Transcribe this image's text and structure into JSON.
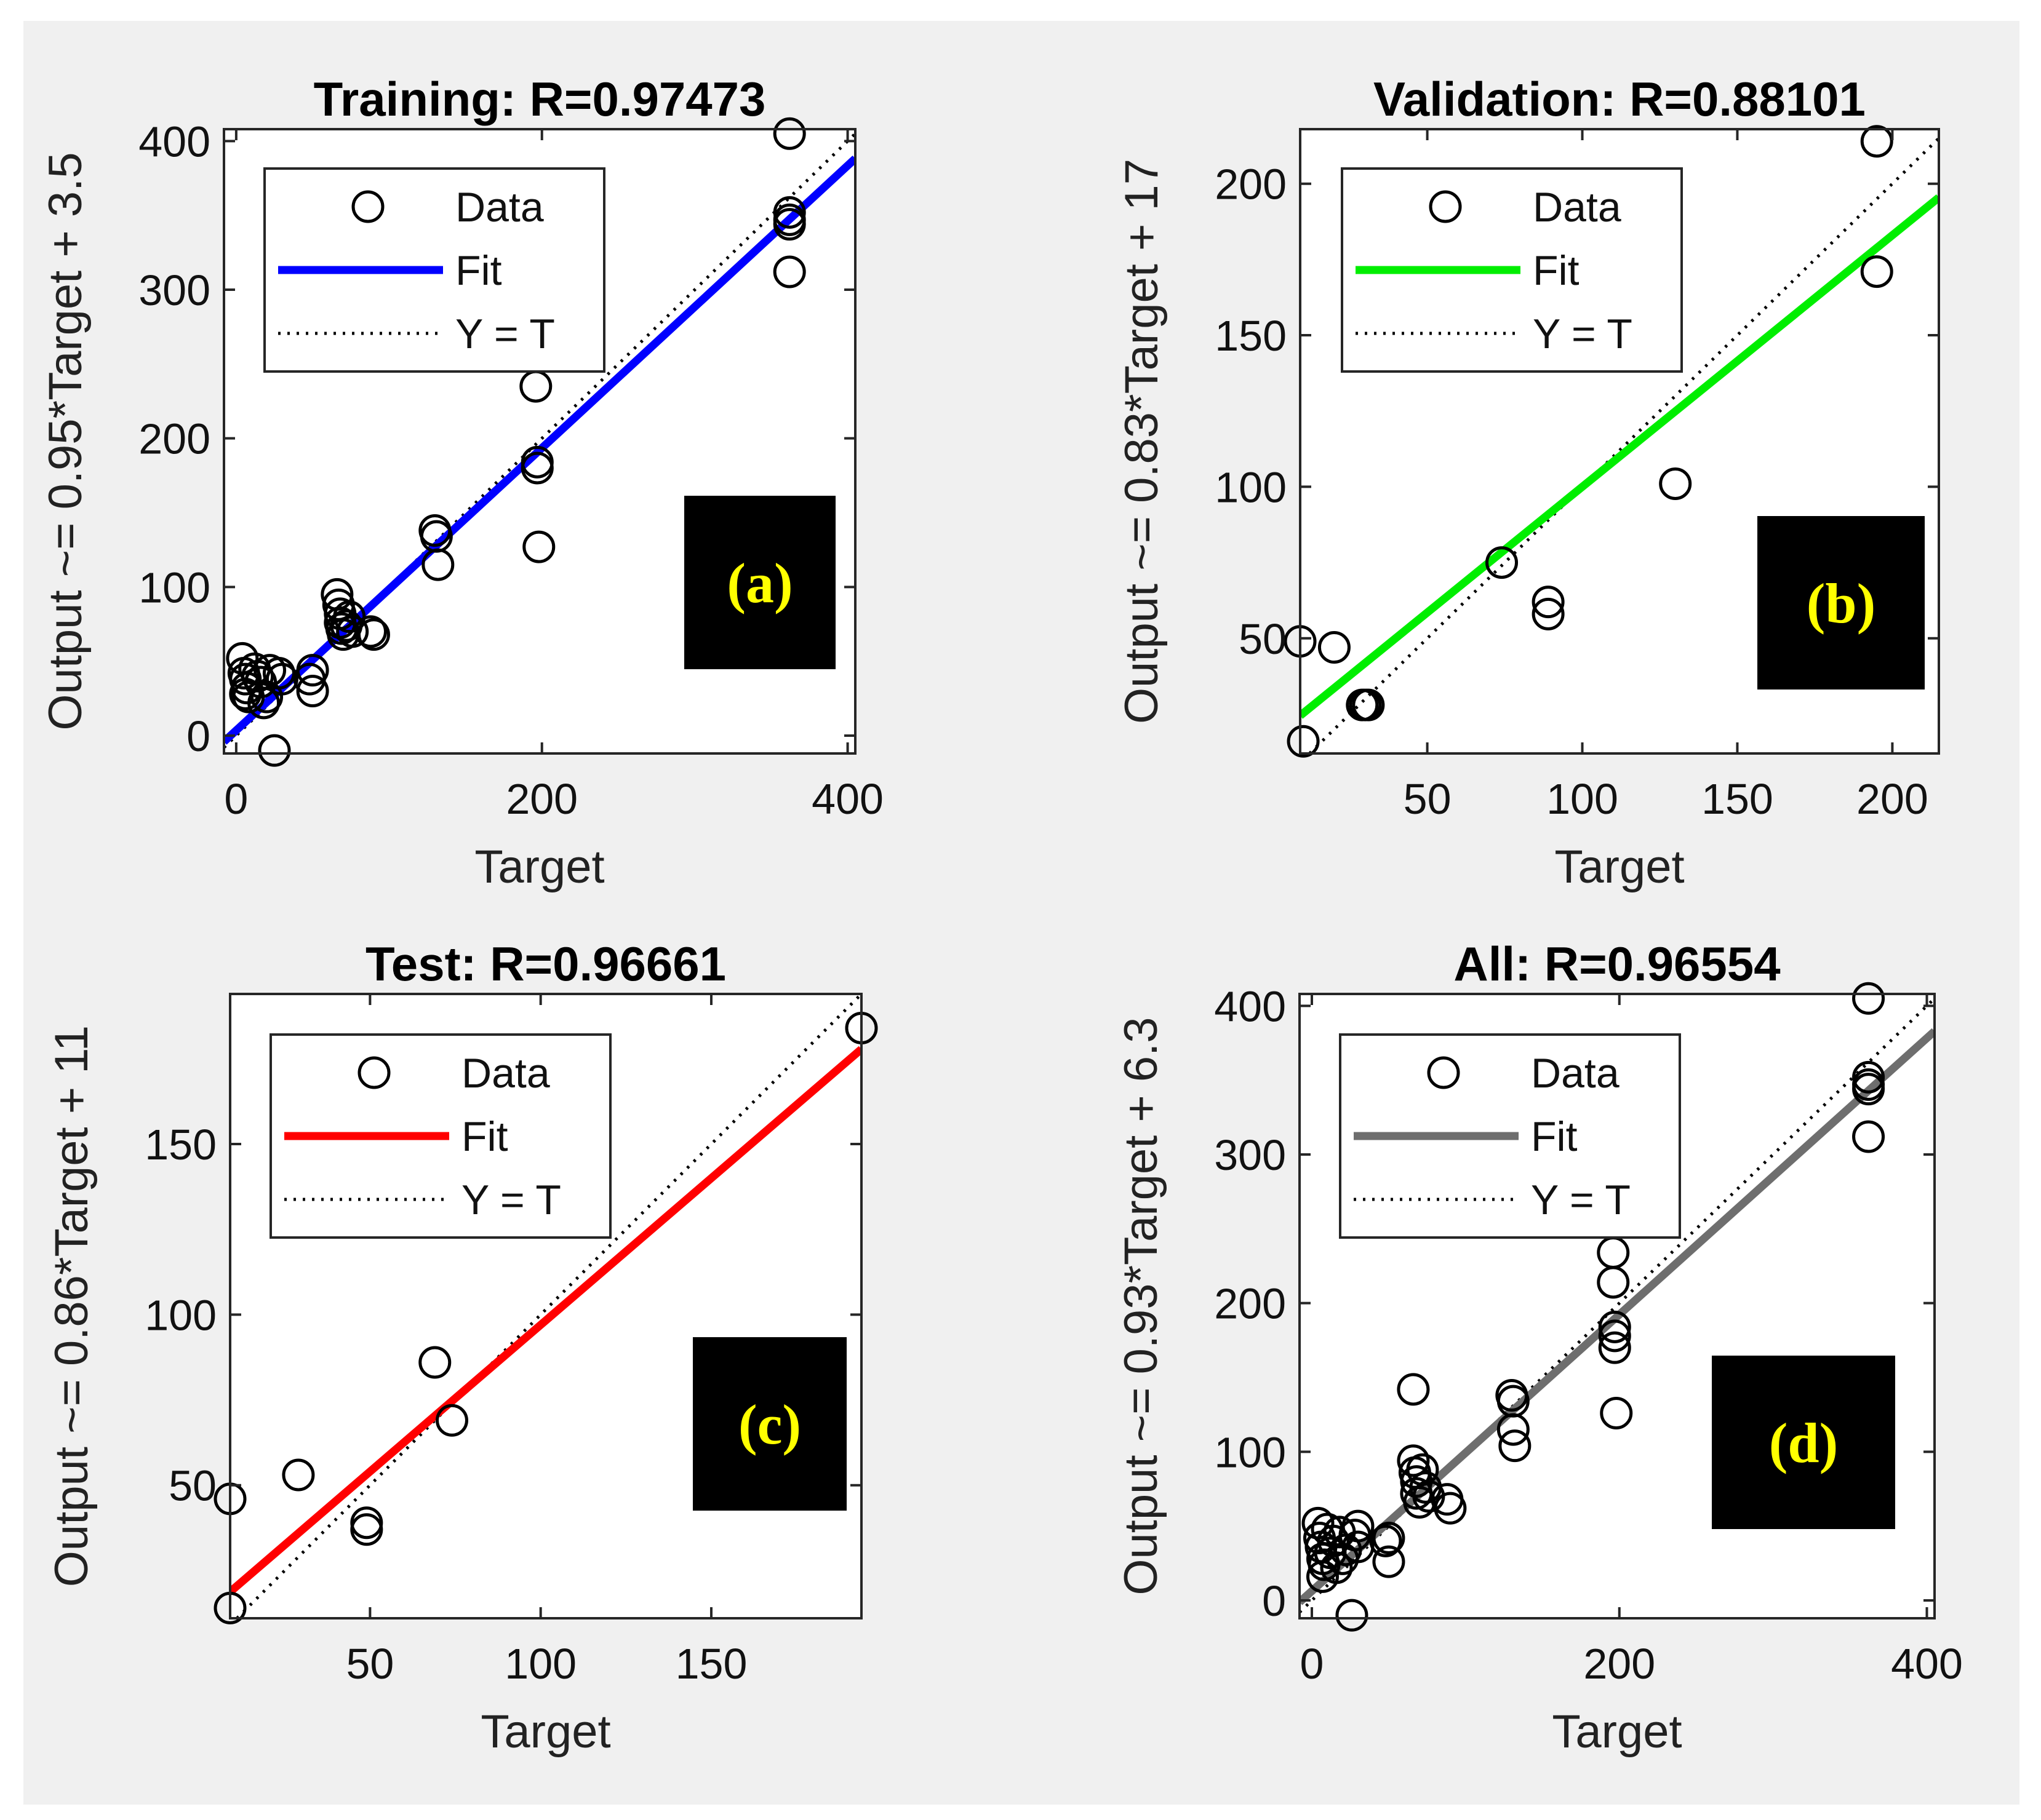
{
  "chart_data": [
    {
      "type": "scatter",
      "panel": "(a)",
      "title": "Training: R=0.97473",
      "xlabel": "Target",
      "ylabel": "Output ~= 0.95*Target + 3.5",
      "xlim": [
        -8,
        405
      ],
      "ylim": [
        -12,
        408
      ],
      "xticks": [
        0,
        200,
        400
      ],
      "yticks": [
        0,
        100,
        200,
        300,
        400
      ],
      "fit": {
        "slope": 0.95,
        "intercept": 3.5,
        "color": "#0000ff"
      },
      "legend": [
        "Data",
        "Fit",
        "Y = T"
      ],
      "points": [
        [
          4,
          52
        ],
        [
          5,
          42
        ],
        [
          6,
          38
        ],
        [
          7,
          32
        ],
        [
          6,
          28
        ],
        [
          8,
          26
        ],
        [
          12,
          45
        ],
        [
          14,
          40
        ],
        [
          16,
          36
        ],
        [
          18,
          22
        ],
        [
          20,
          26
        ],
        [
          22,
          44
        ],
        [
          25,
          -10
        ],
        [
          28,
          42
        ],
        [
          30,
          38
        ],
        [
          48,
          38
        ],
        [
          50,
          44
        ],
        [
          50,
          30
        ],
        [
          66,
          95
        ],
        [
          67,
          88
        ],
        [
          68,
          82
        ],
        [
          68,
          76
        ],
        [
          69,
          72
        ],
        [
          70,
          68
        ],
        [
          72,
          74
        ],
        [
          74,
          80
        ],
        [
          76,
          70
        ],
        [
          88,
          70
        ],
        [
          90,
          68
        ],
        [
          130,
          138
        ],
        [
          131,
          134
        ],
        [
          132,
          115
        ],
        [
          196,
          235
        ],
        [
          197,
          184
        ],
        [
          197,
          180
        ],
        [
          198,
          127
        ],
        [
          362,
          405
        ],
        [
          362,
          352
        ],
        [
          362,
          347
        ],
        [
          362,
          344
        ],
        [
          362,
          312
        ]
      ]
    },
    {
      "type": "scatter",
      "panel": "(b)",
      "title": "Validation: R=0.88101",
      "xlabel": "Target",
      "ylabel": "Output ~= 0.83*Target + 17",
      "xlim": [
        9,
        215
      ],
      "ylim": [
        12,
        218
      ],
      "xticks": [
        50,
        100,
        150,
        200
      ],
      "yticks": [
        50,
        100,
        150,
        200
      ],
      "fit": {
        "slope": 0.83,
        "intercept": 17,
        "color": "#00ee00"
      },
      "legend": [
        "Data",
        "Fit",
        "Y = T"
      ],
      "points": [
        [
          9,
          49
        ],
        [
          10,
          16
        ],
        [
          20,
          47
        ],
        [
          29,
          28
        ],
        [
          30,
          28
        ],
        [
          31,
          28
        ],
        [
          74,
          75
        ],
        [
          89,
          62
        ],
        [
          89,
          58
        ],
        [
          130,
          101
        ],
        [
          195,
          214
        ],
        [
          195,
          171
        ]
      ]
    },
    {
      "type": "scatter",
      "panel": "(c)",
      "title": "Test: R=0.96661",
      "xlabel": "Target",
      "ylabel": "Output ~= 0.86*Target + 11",
      "xlim": [
        9,
        194
      ],
      "ylim": [
        11,
        194
      ],
      "xticks": [
        50,
        100,
        150
      ],
      "yticks": [
        50,
        100,
        150
      ],
      "fit": {
        "slope": 0.86,
        "intercept": 11,
        "color": "#ff0000"
      },
      "legend": [
        "Data",
        "Fit",
        "Y = T"
      ],
      "points": [
        [
          9,
          46
        ],
        [
          9,
          14
        ],
        [
          29,
          53
        ],
        [
          49,
          39
        ],
        [
          49,
          37
        ],
        [
          69,
          86
        ],
        [
          74,
          69
        ],
        [
          194,
          184
        ]
      ]
    },
    {
      "type": "scatter",
      "panel": "(d)",
      "title": "All: R=0.96554",
      "xlabel": "Target",
      "ylabel": "Output ~= 0.93*Target + 6.3",
      "xlim": [
        -8,
        405
      ],
      "ylim": [
        -12,
        408
      ],
      "xticks": [
        0,
        200,
        400
      ],
      "yticks": [
        0,
        100,
        200,
        300,
        400
      ],
      "fit": {
        "slope": 0.93,
        "intercept": 6.3,
        "color": "#6e6e6e"
      },
      "legend": [
        "Data",
        "Fit",
        "Y = T"
      ],
      "points": [
        [
          4,
          52
        ],
        [
          5,
          42
        ],
        [
          6,
          36
        ],
        [
          7,
          28
        ],
        [
          7,
          16
        ],
        [
          8,
          24
        ],
        [
          10,
          48
        ],
        [
          12,
          32
        ],
        [
          14,
          40
        ],
        [
          16,
          22
        ],
        [
          18,
          46
        ],
        [
          20,
          28
        ],
        [
          22,
          34
        ],
        [
          26,
          -10
        ],
        [
          28,
          44
        ],
        [
          30,
          50
        ],
        [
          30,
          36
        ],
        [
          48,
          40
        ],
        [
          50,
          42
        ],
        [
          50,
          26
        ],
        [
          66,
          142
        ],
        [
          66,
          94
        ],
        [
          67,
          86
        ],
        [
          68,
          80
        ],
        [
          68,
          72
        ],
        [
          70,
          66
        ],
        [
          72,
          88
        ],
        [
          74,
          76
        ],
        [
          76,
          70
        ],
        [
          88,
          68
        ],
        [
          90,
          62
        ],
        [
          130,
          138
        ],
        [
          131,
          134
        ],
        [
          131,
          115
        ],
        [
          132,
          104
        ],
        [
          196,
          234
        ],
        [
          196,
          214
        ],
        [
          197,
          184
        ],
        [
          197,
          178
        ],
        [
          197,
          170
        ],
        [
          198,
          126
        ],
        [
          362,
          405
        ],
        [
          362,
          352
        ],
        [
          362,
          347
        ],
        [
          362,
          344
        ],
        [
          362,
          312
        ]
      ]
    }
  ]
}
